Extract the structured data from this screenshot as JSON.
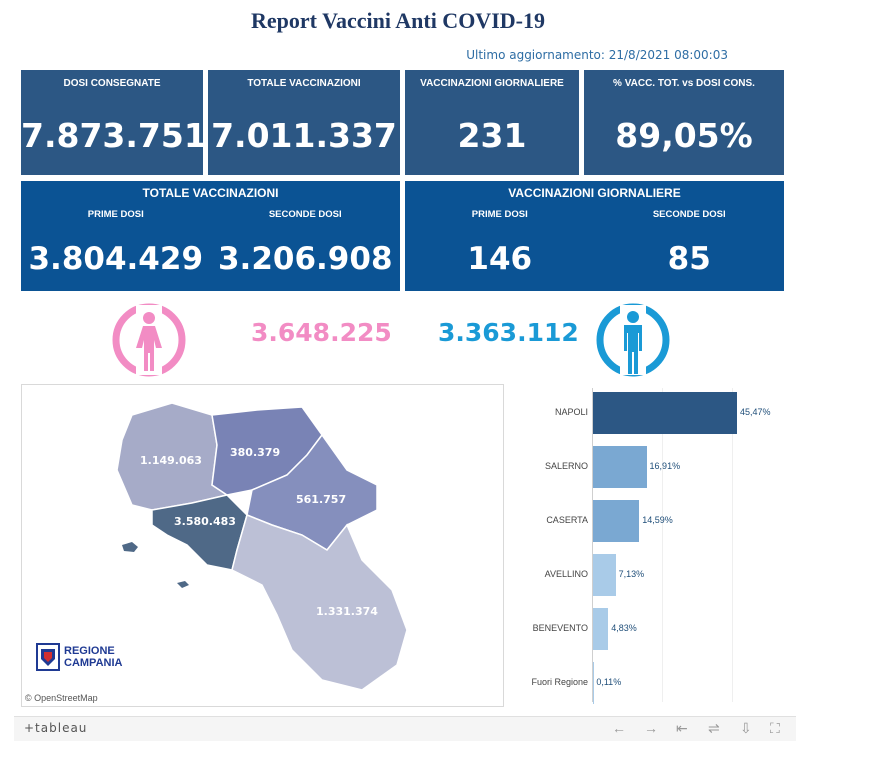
{
  "title": "Report Vaccini Anti COVID-19",
  "last_update": "Ultimo aggiornamento: 21/8/2021 08:00:03",
  "kpis": [
    {
      "label": "DOSI  CONSEGNATE",
      "value": "7.873.751"
    },
    {
      "label": "TOTALE VACCINAZIONI",
      "value": "7.011.337"
    },
    {
      "label": "VACCINAZIONI GIORNALIERE",
      "value": "231"
    },
    {
      "label": "% VACC. TOT. vs DOSI CONS.",
      "value": "89,05%"
    }
  ],
  "total_panel": {
    "header": "TOTALE VACCINAZIONI",
    "first_label": "PRIME DOSI",
    "first_value": "3.804.429",
    "second_label": "SECONDE DOSI",
    "second_value": "3.206.908"
  },
  "daily_panel": {
    "header": "VACCINAZIONI GIORNALIERE",
    "first_label": "PRIME DOSI",
    "first_value": "146",
    "second_label": "SECONDE DOSI",
    "second_value": "85"
  },
  "gender": {
    "female_value": "3.648.225",
    "female_color": "#f28cc4",
    "male_value": "3.363.112",
    "male_color": "#1a9ad6"
  },
  "map": {
    "labels": {
      "caserta": "1.149.063",
      "benevento": "380.379",
      "avellino": "561.757",
      "napoli": "3.580.483",
      "salerno": "1.331.374"
    },
    "attribution": "© OpenStreetMap",
    "logo_line1": "REGIONE",
    "logo_line2": "CAMPANIA"
  },
  "chart_data": {
    "type": "bar",
    "orientation": "horizontal",
    "categories": [
      "NAPOLI",
      "SALERNO",
      "CASERTA",
      "AVELLINO",
      "BENEVENTO",
      "Fuori Regione"
    ],
    "values": [
      45.47,
      16.91,
      14.59,
      7.13,
      4.83,
      0.11
    ],
    "labels": [
      "45,47%",
      "16,91%",
      "14,59%",
      "7,13%",
      "4,83%",
      "0,11%"
    ],
    "colors": [
      "#2c5784",
      "#7aa8d2",
      "#7aa8d2",
      "#a9cbe8",
      "#a9cbe8",
      "#a9cbe8"
    ],
    "xlim": [
      0,
      60
    ]
  },
  "toolbar": {
    "logo": "+tableau",
    "undo": "←",
    "redo": "→",
    "revert": "⇤",
    "share": "⇌",
    "download": "⇩",
    "fullscreen": "⛶"
  }
}
